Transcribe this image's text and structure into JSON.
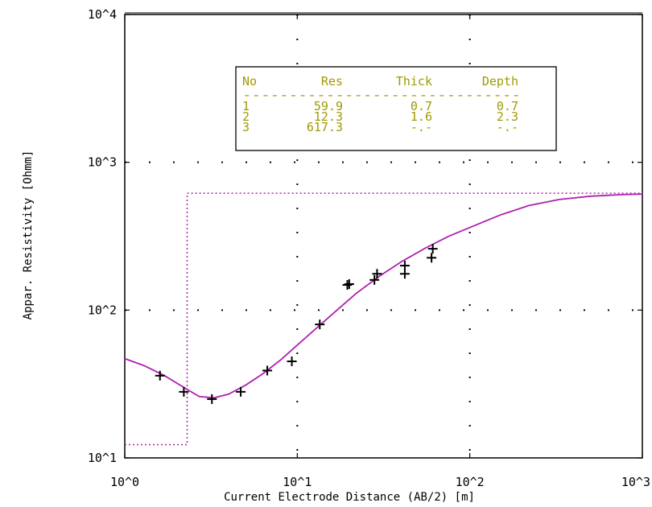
{
  "chart_data": {
    "type": "line",
    "xlabel": "Current Electrode Distance (AB/2) [m]",
    "ylabel": "Appar. Resistivity [Ohmm]",
    "xscale": "log",
    "yscale": "log",
    "xlim": [
      1,
      1000
    ],
    "ylim": [
      10,
      10000
    ],
    "x_tick_labels": [
      "10^0",
      "10^1",
      "10^2",
      "10^3"
    ],
    "y_tick_labels": [
      "10^1",
      "10^2",
      "10^3",
      "10^4"
    ],
    "grid": "dotted",
    "series": [
      {
        "style": "measured points (+ markers)",
        "x": [
          1.6,
          2.2,
          3.2,
          4.7,
          6.7,
          9.3,
          13.5,
          19.5,
          20,
          28,
          29,
          42,
          42,
          60,
          61
        ],
        "y": [
          36,
          28,
          25,
          28,
          39,
          45,
          80,
          148,
          150,
          160,
          176,
          176,
          200,
          226,
          260
        ]
      },
      {
        "style": "model response curve (solid)",
        "x": [
          1,
          1.3,
          1.7,
          2.2,
          2.7,
          3.3,
          4,
          5,
          6.3,
          8,
          10,
          13,
          17,
          22,
          30,
          40,
          55,
          75,
          100,
          150,
          220,
          330,
          500,
          750,
          1000
        ],
        "y": [
          47,
          42,
          36,
          30,
          26,
          25.5,
          27,
          31,
          37,
          46,
          58,
          76,
          100,
          130,
          170,
          212,
          262,
          315,
          362,
          440,
          510,
          560,
          590,
          604,
          610
        ]
      },
      {
        "style": "layer model (dotted step)",
        "x": [
          1,
          2.3,
          2.3,
          1000
        ],
        "y": [
          12.3,
          12.3,
          617.3,
          617.3
        ]
      }
    ],
    "colors": {
      "curve": "#b020b0",
      "points": "#000000",
      "table_text": "#a09a00"
    }
  },
  "layer_table": {
    "headers": [
      "No",
      "Res",
      "Thick",
      "Depth"
    ],
    "separator": "------------------------------",
    "rows": [
      [
        "1",
        "59.9",
        "0.7",
        "0.7"
      ],
      [
        "2",
        "12.3",
        "1.6",
        "2.3"
      ],
      [
        "3",
        "617.3",
        "-.-",
        "-.-"
      ]
    ]
  }
}
